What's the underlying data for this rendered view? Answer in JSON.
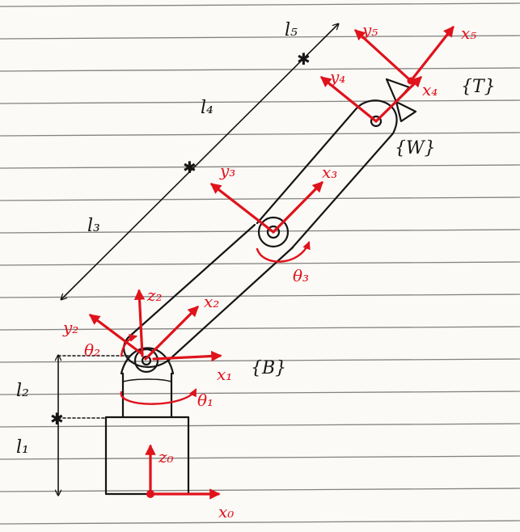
{
  "diagram": {
    "colors": {
      "ink": "#151515",
      "accent": "#e0121b",
      "paper": "#fbfaf6",
      "rules": "#6f6f6f"
    },
    "frames": {
      "base": "{B}",
      "wrist": "{W}",
      "tool": "{T}"
    },
    "lengths": {
      "l1": "l₁",
      "l2": "l₂",
      "l3": "l₃",
      "l4": "l₄",
      "l5": "l₅"
    },
    "axes": {
      "x0": "x₀",
      "z0": "z₀",
      "x1": "x₁",
      "theta1": "θ₁",
      "x2": "x₂",
      "z2": "z₂",
      "y2": "y₂",
      "theta2": "θ₂",
      "x3": "x₃",
      "y3": "y₃",
      "theta3": "θ₃",
      "x4": "x₄",
      "y4": "y₄",
      "x5": "x₅",
      "y5": "y₅"
    }
  }
}
